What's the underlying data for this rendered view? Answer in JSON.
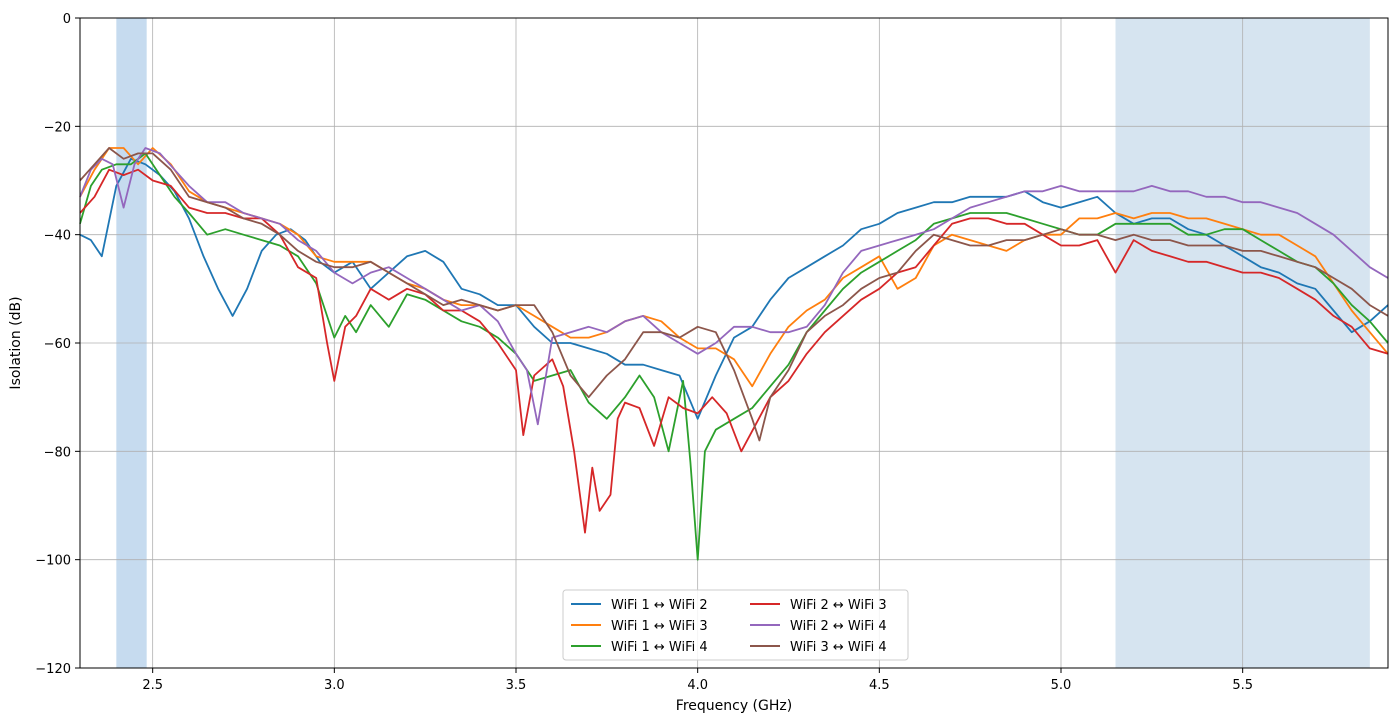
{
  "chart_data": {
    "type": "line",
    "title": "",
    "xlabel": "Frequency (GHz)",
    "ylabel": "Isolation (dB)",
    "xlim": [
      2.3,
      5.9
    ],
    "ylim": [
      -120,
      0
    ],
    "xticks": [
      2.5,
      3.0,
      3.5,
      4.0,
      4.5,
      5.0,
      5.5
    ],
    "xtick_labels": [
      "2.5",
      "3.0",
      "3.5",
      "4.0",
      "4.5",
      "5.0",
      "5.5"
    ],
    "yticks": [
      0,
      -20,
      -40,
      -60,
      -80,
      -100,
      -120
    ],
    "ytick_labels": [
      "0",
      "−20",
      "−40",
      "−60",
      "−80",
      "−100",
      "−120"
    ],
    "grid": true,
    "shaded_bands": [
      {
        "x0": 2.4,
        "x1": 2.4835,
        "color": "#c6dbef"
      },
      {
        "x0": 5.15,
        "x1": 5.85,
        "color": "#d6e4f0"
      }
    ],
    "legend_position": "lower-center",
    "series": [
      {
        "name": "WiFi 1 ↔ WiFi 2",
        "color": "#1f77b4",
        "x": [
          2.3,
          2.33,
          2.36,
          2.4,
          2.44,
          2.48,
          2.52,
          2.56,
          2.6,
          2.64,
          2.68,
          2.72,
          2.76,
          2.8,
          2.84,
          2.88,
          2.92,
          2.96,
          3.0,
          3.05,
          3.1,
          3.15,
          3.2,
          3.25,
          3.3,
          3.35,
          3.4,
          3.45,
          3.5,
          3.55,
          3.6,
          3.65,
          3.7,
          3.75,
          3.8,
          3.85,
          3.9,
          3.95,
          4.0,
          4.05,
          4.1,
          4.15,
          4.2,
          4.25,
          4.3,
          4.35,
          4.4,
          4.45,
          4.5,
          4.55,
          4.6,
          4.65,
          4.7,
          4.75,
          4.8,
          4.85,
          4.9,
          4.95,
          5.0,
          5.05,
          5.1,
          5.15,
          5.2,
          5.25,
          5.3,
          5.35,
          5.4,
          5.45,
          5.5,
          5.55,
          5.6,
          5.65,
          5.7,
          5.75,
          5.8,
          5.85,
          5.9
        ],
        "y": [
          -40,
          -41,
          -44,
          -31,
          -26,
          -27,
          -29,
          -32,
          -37,
          -44,
          -50,
          -55,
          -50,
          -43,
          -40,
          -39,
          -41,
          -45,
          -47,
          -45,
          -50,
          -47,
          -44,
          -43,
          -45,
          -50,
          -51,
          -53,
          -53,
          -57,
          -60,
          -60,
          -61,
          -62,
          -64,
          -64,
          -65,
          -66,
          -74,
          -66,
          -59,
          -57,
          -52,
          -48,
          -46,
          -44,
          -42,
          -39,
          -38,
          -36,
          -35,
          -34,
          -34,
          -33,
          -33,
          -33,
          -32,
          -34,
          -35,
          -34,
          -33,
          -36,
          -38,
          -37,
          -37,
          -39,
          -40,
          -42,
          -44,
          -46,
          -47,
          -49,
          -50,
          -54,
          -58,
          -56,
          -53
        ]
      },
      {
        "name": "WiFi 1 ↔ WiFi 3",
        "color": "#ff7f0e",
        "x": [
          2.3,
          2.34,
          2.38,
          2.42,
          2.46,
          2.5,
          2.55,
          2.6,
          2.65,
          2.7,
          2.75,
          2.8,
          2.85,
          2.9,
          2.95,
          3.0,
          3.05,
          3.1,
          3.15,
          3.2,
          3.25,
          3.3,
          3.35,
          3.4,
          3.45,
          3.5,
          3.55,
          3.6,
          3.65,
          3.7,
          3.75,
          3.8,
          3.85,
          3.9,
          3.95,
          4.0,
          4.05,
          4.1,
          4.15,
          4.2,
          4.25,
          4.3,
          4.35,
          4.4,
          4.45,
          4.5,
          4.55,
          4.6,
          4.65,
          4.7,
          4.75,
          4.8,
          4.85,
          4.9,
          4.95,
          5.0,
          5.05,
          5.1,
          5.15,
          5.2,
          5.25,
          5.3,
          5.35,
          5.4,
          5.45,
          5.5,
          5.55,
          5.6,
          5.65,
          5.7,
          5.75,
          5.8,
          5.85,
          5.9
        ],
        "y": [
          -33,
          -28,
          -24,
          -24,
          -27,
          -24,
          -27,
          -32,
          -34,
          -35,
          -36,
          -37,
          -38,
          -40,
          -44,
          -45,
          -45,
          -45,
          -47,
          -49,
          -50,
          -52,
          -53,
          -53,
          -54,
          -53,
          -55,
          -57,
          -59,
          -59,
          -58,
          -56,
          -55,
          -56,
          -59,
          -61,
          -61,
          -63,
          -68,
          -62,
          -57,
          -54,
          -52,
          -48,
          -46,
          -44,
          -50,
          -48,
          -42,
          -40,
          -41,
          -42,
          -43,
          -41,
          -40,
          -40,
          -37,
          -37,
          -36,
          -37,
          -36,
          -36,
          -37,
          -37,
          -38,
          -39,
          -40,
          -40,
          -42,
          -44,
          -49,
          -54,
          -58,
          -62
        ]
      },
      {
        "name": "WiFi 1 ↔ WiFi 4",
        "color": "#2ca02c",
        "x": [
          2.3,
          2.33,
          2.36,
          2.4,
          2.44,
          2.48,
          2.52,
          2.56,
          2.6,
          2.65,
          2.7,
          2.75,
          2.8,
          2.85,
          2.9,
          2.95,
          3.0,
          3.03,
          3.06,
          3.1,
          3.15,
          3.2,
          3.25,
          3.3,
          3.35,
          3.4,
          3.45,
          3.5,
          3.55,
          3.6,
          3.65,
          3.7,
          3.75,
          3.8,
          3.84,
          3.88,
          3.92,
          3.96,
          3.98,
          4.0,
          4.02,
          4.05,
          4.1,
          4.15,
          4.2,
          4.25,
          4.3,
          4.35,
          4.4,
          4.45,
          4.5,
          4.55,
          4.6,
          4.65,
          4.7,
          4.75,
          4.8,
          4.85,
          4.9,
          4.95,
          5.0,
          5.05,
          5.1,
          5.15,
          5.2,
          5.25,
          5.3,
          5.35,
          5.4,
          5.45,
          5.5,
          5.55,
          5.6,
          5.65,
          5.7,
          5.75,
          5.8,
          5.85,
          5.9
        ],
        "y": [
          -38,
          -31,
          -28,
          -27,
          -27,
          -25,
          -29,
          -33,
          -36,
          -40,
          -39,
          -40,
          -41,
          -42,
          -44,
          -49,
          -59,
          -55,
          -58,
          -53,
          -57,
          -51,
          -52,
          -54,
          -56,
          -57,
          -59,
          -62,
          -67,
          -66,
          -65,
          -71,
          -74,
          -70,
          -66,
          -70,
          -80,
          -67,
          -82,
          -100,
          -80,
          -76,
          -74,
          -72,
          -68,
          -64,
          -58,
          -54,
          -50,
          -47,
          -45,
          -43,
          -41,
          -38,
          -37,
          -36,
          -36,
          -36,
          -37,
          -38,
          -39,
          -40,
          -40,
          -38,
          -38,
          -38,
          -38,
          -40,
          -40,
          -39,
          -39,
          -41,
          -43,
          -45,
          -46,
          -49,
          -53,
          -56,
          -60
        ]
      },
      {
        "name": "WiFi 2 ↔ WiFi 3",
        "color": "#d62728",
        "x": [
          2.3,
          2.34,
          2.38,
          2.42,
          2.46,
          2.5,
          2.55,
          2.6,
          2.65,
          2.7,
          2.75,
          2.8,
          2.85,
          2.9,
          2.95,
          2.98,
          3.0,
          3.03,
          3.06,
          3.1,
          3.15,
          3.2,
          3.25,
          3.3,
          3.35,
          3.4,
          3.45,
          3.5,
          3.52,
          3.55,
          3.6,
          3.63,
          3.66,
          3.69,
          3.71,
          3.73,
          3.76,
          3.78,
          3.8,
          3.84,
          3.88,
          3.92,
          3.96,
          4.0,
          4.04,
          4.08,
          4.12,
          4.16,
          4.2,
          4.25,
          4.3,
          4.35,
          4.4,
          4.45,
          4.5,
          4.55,
          4.6,
          4.65,
          4.7,
          4.75,
          4.8,
          4.85,
          4.9,
          4.95,
          5.0,
          5.05,
          5.1,
          5.15,
          5.2,
          5.25,
          5.3,
          5.35,
          5.4,
          5.45,
          5.5,
          5.55,
          5.6,
          5.65,
          5.7,
          5.75,
          5.8,
          5.85,
          5.9
        ],
        "y": [
          -36,
          -33,
          -28,
          -29,
          -28,
          -30,
          -31,
          -35,
          -36,
          -36,
          -37,
          -37,
          -40,
          -46,
          -48,
          -60,
          -67,
          -57,
          -55,
          -50,
          -52,
          -50,
          -51,
          -54,
          -54,
          -56,
          -60,
          -65,
          -77,
          -66,
          -63,
          -68,
          -80,
          -95,
          -83,
          -91,
          -88,
          -74,
          -71,
          -72,
          -79,
          -70,
          -72,
          -73,
          -70,
          -73,
          -80,
          -75,
          -70,
          -67,
          -62,
          -58,
          -55,
          -52,
          -50,
          -47,
          -46,
          -42,
          -38,
          -37,
          -37,
          -38,
          -38,
          -40,
          -42,
          -42,
          -41,
          -47,
          -41,
          -43,
          -44,
          -45,
          -45,
          -46,
          -47,
          -47,
          -48,
          -50,
          -52,
          -55,
          -57,
          -61,
          -62
        ]
      },
      {
        "name": "WiFi 2 ↔ WiFi 4",
        "color": "#9467bd",
        "x": [
          2.3,
          2.33,
          2.36,
          2.39,
          2.42,
          2.45,
          2.48,
          2.52,
          2.56,
          2.6,
          2.65,
          2.7,
          2.75,
          2.8,
          2.85,
          2.9,
          2.95,
          3.0,
          3.05,
          3.1,
          3.15,
          3.2,
          3.25,
          3.3,
          3.35,
          3.4,
          3.45,
          3.5,
          3.53,
          3.56,
          3.6,
          3.65,
          3.7,
          3.75,
          3.8,
          3.85,
          3.9,
          3.95,
          4.0,
          4.05,
          4.1,
          4.15,
          4.2,
          4.25,
          4.3,
          4.35,
          4.4,
          4.45,
          4.5,
          4.55,
          4.6,
          4.65,
          4.7,
          4.75,
          4.8,
          4.85,
          4.9,
          4.95,
          5.0,
          5.05,
          5.1,
          5.15,
          5.2,
          5.25,
          5.3,
          5.35,
          5.4,
          5.45,
          5.5,
          5.55,
          5.6,
          5.65,
          5.7,
          5.75,
          5.8,
          5.85,
          5.9
        ],
        "y": [
          -33,
          -28,
          -26,
          -27,
          -35,
          -27,
          -24,
          -25,
          -28,
          -31,
          -34,
          -34,
          -36,
          -37,
          -38,
          -41,
          -43,
          -47,
          -49,
          -47,
          -46,
          -48,
          -50,
          -52,
          -54,
          -53,
          -56,
          -62,
          -65,
          -75,
          -59,
          -58,
          -57,
          -58,
          -56,
          -55,
          -58,
          -60,
          -62,
          -60,
          -57,
          -57,
          -58,
          -58,
          -57,
          -53,
          -47,
          -43,
          -42,
          -41,
          -40,
          -39,
          -37,
          -35,
          -34,
          -33,
          -32,
          -32,
          -31,
          -32,
          -32,
          -32,
          -32,
          -31,
          -32,
          -32,
          -33,
          -33,
          -34,
          -34,
          -35,
          -36,
          -38,
          -40,
          -43,
          -46,
          -48
        ]
      },
      {
        "name": "WiFi 3 ↔ WiFi 4",
        "color": "#8c564b",
        "x": [
          2.3,
          2.34,
          2.38,
          2.42,
          2.46,
          2.5,
          2.55,
          2.6,
          2.65,
          2.7,
          2.75,
          2.8,
          2.85,
          2.9,
          2.95,
          3.0,
          3.05,
          3.1,
          3.15,
          3.2,
          3.25,
          3.3,
          3.35,
          3.4,
          3.45,
          3.5,
          3.55,
          3.6,
          3.65,
          3.7,
          3.75,
          3.8,
          3.85,
          3.9,
          3.95,
          4.0,
          4.05,
          4.1,
          4.15,
          4.17,
          4.2,
          4.25,
          4.3,
          4.35,
          4.4,
          4.45,
          4.5,
          4.55,
          4.6,
          4.65,
          4.7,
          4.75,
          4.8,
          4.85,
          4.9,
          4.95,
          5.0,
          5.05,
          5.1,
          5.15,
          5.2,
          5.25,
          5.3,
          5.35,
          5.4,
          5.45,
          5.5,
          5.55,
          5.6,
          5.65,
          5.7,
          5.75,
          5.8,
          5.85,
          5.9
        ],
        "y": [
          -30,
          -27,
          -24,
          -26,
          -25,
          -25,
          -28,
          -33,
          -34,
          -35,
          -37,
          -38,
          -40,
          -43,
          -45,
          -46,
          -46,
          -45,
          -47,
          -49,
          -51,
          -53,
          -52,
          -53,
          -54,
          -53,
          -53,
          -58,
          -66,
          -70,
          -66,
          -63,
          -58,
          -58,
          -59,
          -57,
          -58,
          -65,
          -74,
          -78,
          -70,
          -65,
          -58,
          -55,
          -53,
          -50,
          -48,
          -47,
          -43,
          -40,
          -41,
          -42,
          -42,
          -41,
          -41,
          -40,
          -39,
          -40,
          -40,
          -41,
          -40,
          -41,
          -41,
          -42,
          -42,
          -42,
          -43,
          -43,
          -44,
          -45,
          -46,
          -48,
          -50,
          -53,
          -55
        ]
      }
    ]
  }
}
